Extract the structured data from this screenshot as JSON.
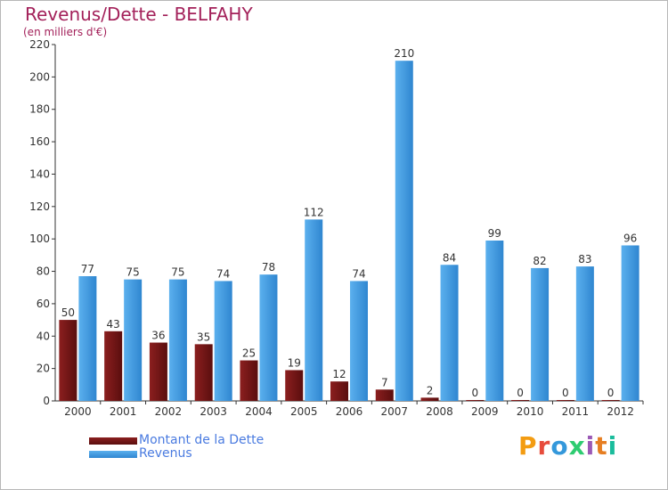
{
  "header": {
    "title": "Revenus/Dette - BELFAHY",
    "subtitle": "(en milliers d'€)"
  },
  "chart_data": {
    "type": "bar",
    "title": "Revenus/Dette - BELFAHY",
    "ylabel": "(en milliers d'€)",
    "xlabel": "",
    "categories": [
      "2000",
      "2001",
      "2002",
      "2003",
      "2004",
      "2005",
      "2006",
      "2007",
      "2008",
      "2009",
      "2010",
      "2011",
      "2012"
    ],
    "series": [
      {
        "name": "Montant de la Dette",
        "color": "#7a1a1a",
        "values": [
          50,
          43,
          36,
          35,
          25,
          19,
          12,
          7,
          2,
          0,
          0,
          0,
          0
        ]
      },
      {
        "name": "Revenus",
        "color": "#4d9ee0",
        "values": [
          77,
          75,
          75,
          74,
          78,
          112,
          74,
          210,
          84,
          99,
          82,
          83,
          96
        ]
      }
    ],
    "ylim": [
      0,
      220
    ],
    "yticks": [
      0,
      20,
      40,
      60,
      80,
      100,
      120,
      140,
      160,
      180,
      200,
      220
    ],
    "grid": false,
    "legend": "bottom-left"
  },
  "legend": [
    {
      "label": "Montant de la Dette",
      "color": "#7a1a1a"
    },
    {
      "label": "Revenus",
      "color": "#4d9ee0"
    }
  ],
  "brand": {
    "logo_text": "Proxiti",
    "colors": [
      "#f39c12",
      "#e74c3c",
      "#3498db",
      "#2ecc71",
      "#9b59b6",
      "#e67e22",
      "#1abc9c"
    ]
  }
}
